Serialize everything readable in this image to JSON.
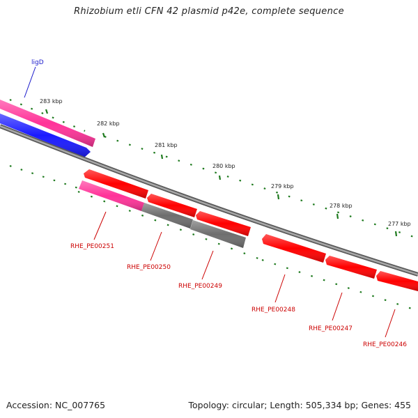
{
  "title": "Rhizobium etli CFN 42 plasmid p42e, complete sequence",
  "footer": {
    "accession": "Accession: NC_007765",
    "summary": "Topology: circular; Length: 505,334 bp; Genes: 455"
  },
  "colors": {
    "background": "#ffffff",
    "backbone": "#8c8c8c",
    "forward_gene": "#1a1aff",
    "forward_gene_alt": "#ff3399",
    "reverse_gene": "#ff0000",
    "reverse_gene_alt": "#ff3399",
    "reverse_gene_gray": "#6e6e6e",
    "tick": "#1e7a1e",
    "gene_label_forward": "#1a1acc",
    "gene_label_reverse": "#cc0000"
  },
  "ticks": [
    {
      "label": "283 kbp"
    },
    {
      "label": "282 kbp"
    },
    {
      "label": "281 kbp"
    },
    {
      "label": "280 kbp"
    },
    {
      "label": "279 kbp"
    },
    {
      "label": "278 kbp"
    },
    {
      "label": "277 kbp"
    }
  ],
  "forward_genes": [
    {
      "label": "ligD",
      "color": "#1a1aff"
    }
  ],
  "reverse_genes": [
    {
      "label": "RHE_PE00251",
      "color": "#ff3399"
    },
    {
      "label": "RHE_PE00250",
      "color": "#6e6e6e"
    },
    {
      "label": "RHE_PE00249",
      "color": "#ff0000"
    },
    {
      "label": "RHE_PE00248",
      "color": "#ff0000"
    },
    {
      "label": "RHE_PE00247",
      "color": "#ff0000"
    },
    {
      "label": "RHE_PE00246",
      "color": "#ff0000"
    }
  ]
}
